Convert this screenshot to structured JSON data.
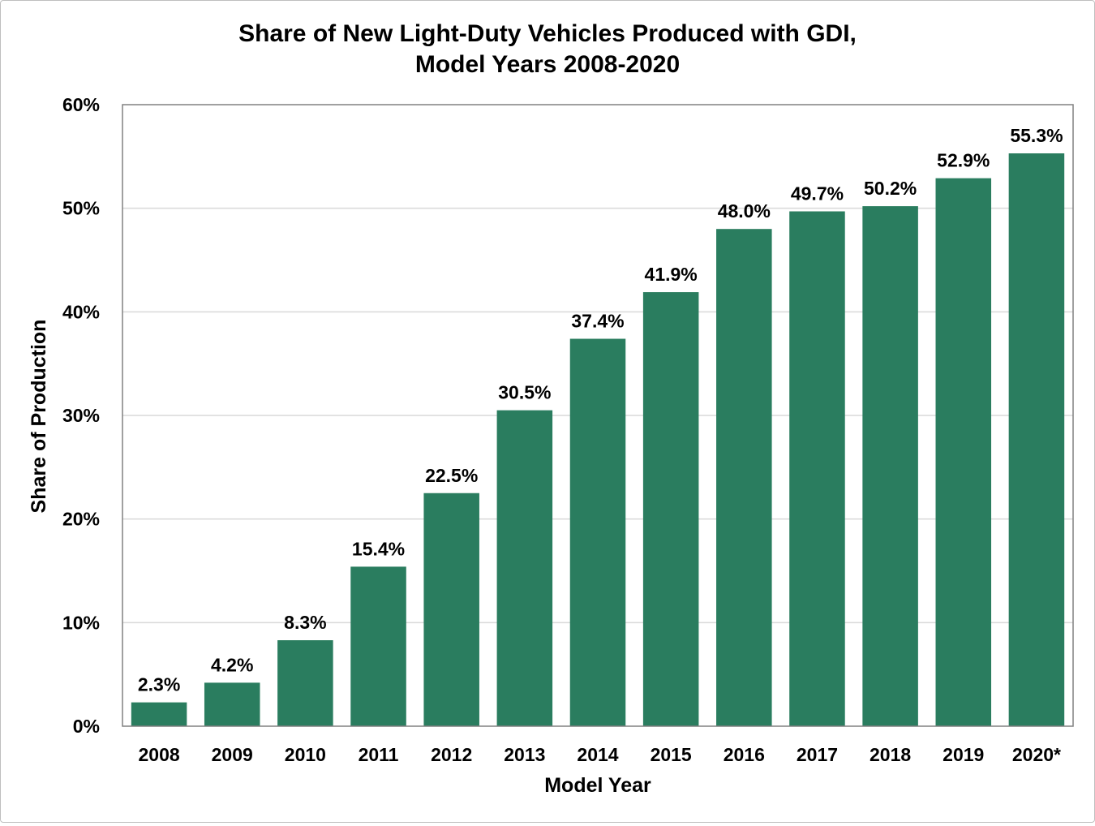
{
  "chart_data": {
    "type": "bar",
    "title": [
      "Share of New Light-Duty Vehicles Produced with GDI,",
      "Model Years 2008-2020"
    ],
    "xlabel": "Model Year",
    "ylabel": "Share of Production",
    "categories": [
      "2008",
      "2009",
      "2010",
      "2011",
      "2012",
      "2013",
      "2014",
      "2015",
      "2016",
      "2017",
      "2018",
      "2019",
      "2020*"
    ],
    "values": [
      2.3,
      4.2,
      8.3,
      15.4,
      22.5,
      30.5,
      37.4,
      41.9,
      48.0,
      49.7,
      50.2,
      52.9,
      55.3
    ],
    "data_labels": [
      "2.3%",
      "4.2%",
      "8.3%",
      "15.4%",
      "22.5%",
      "30.5%",
      "37.4%",
      "41.9%",
      "48.0%",
      "49.7%",
      "50.2%",
      "52.9%",
      "55.3%"
    ],
    "ylim": [
      0,
      60
    ],
    "yticks": [
      0,
      10,
      20,
      30,
      40,
      50,
      60
    ],
    "ytick_labels": [
      "0%",
      "10%",
      "20%",
      "30%",
      "40%",
      "50%",
      "60%"
    ],
    "grid": true,
    "bar_color": "#2a7d5f",
    "grid_color": "#d9d9d9"
  }
}
